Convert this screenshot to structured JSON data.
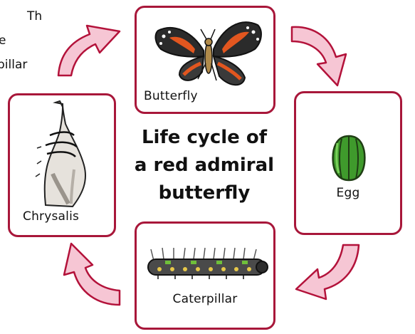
{
  "title": {
    "lines": [
      "Life cycle of",
      "a red admiral",
      "butterfly"
    ]
  },
  "stages": {
    "butterfly": "Butterfly",
    "egg": "Egg",
    "caterpillar": "Caterpillar",
    "chrysalis": "Chrysalis"
  },
  "corner_text": {
    "lines": [
      "The",
      "e",
      "pillar"
    ]
  },
  "colors": {
    "border": "#a8173a",
    "arrow_fill": "#f6c6d4",
    "arrow_stroke": "#b3123a",
    "egg_green": "#3f9a2c"
  },
  "icons": {
    "butterfly": "red-admiral-butterfly-icon",
    "egg": "egg-icon",
    "caterpillar": "caterpillar-icon",
    "chrysalis": "chrysalis-icon",
    "arrows": "cycle-arrow-icon"
  }
}
